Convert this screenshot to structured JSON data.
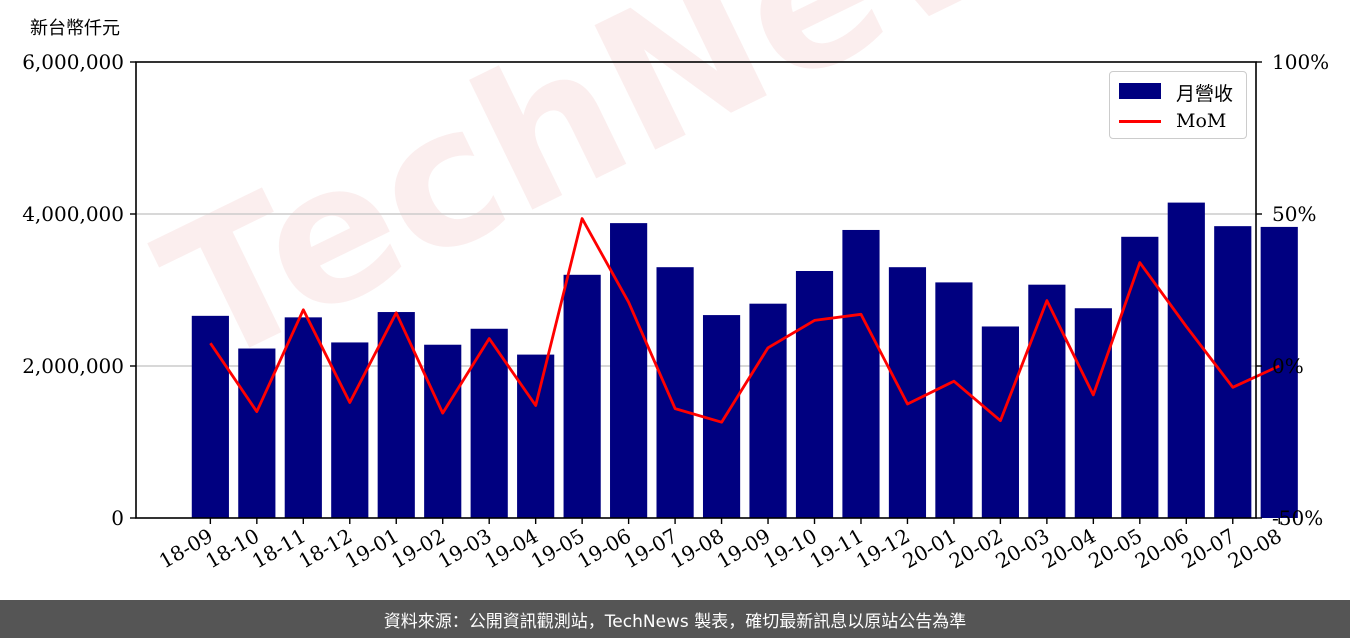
{
  "unit_label": "新台幣仟元",
  "watermark": "TechNews",
  "footer": "資料來源：公開資訊觀測站，TechNews 製表，確切最新訊息以原站公告為準",
  "colors": {
    "bar": "#000080",
    "line": "#ff0000",
    "grid": "#cccccc",
    "footer_bg": "#555555"
  },
  "chart_data": {
    "type": "bar",
    "categories": [
      "18-09",
      "18-10",
      "18-11",
      "18-12",
      "19-01",
      "19-02",
      "19-03",
      "19-04",
      "19-05",
      "19-06",
      "19-07",
      "19-08",
      "19-09",
      "19-10",
      "19-11",
      "19-12",
      "20-01",
      "20-02",
      "20-03",
      "20-04",
      "20-05",
      "20-06",
      "20-07",
      "20-08"
    ],
    "series": [
      {
        "name": "月營收",
        "type": "bar",
        "axis": "left",
        "values": [
          2660000,
          2230000,
          2640000,
          2310000,
          2710000,
          2280000,
          2490000,
          2150000,
          3200000,
          3880000,
          3300000,
          2670000,
          2820000,
          3250000,
          3790000,
          3300000,
          3100000,
          2520000,
          3070000,
          2760000,
          3700000,
          4150000,
          3840000,
          3830000
        ]
      },
      {
        "name": "MoM",
        "type": "line",
        "axis": "right",
        "values": [
          7.5,
          -15,
          18.5,
          -12,
          17.5,
          -15.5,
          9,
          -13,
          48.5,
          21,
          -14,
          -18.5,
          6,
          15,
          17,
          -12.5,
          -5,
          -18,
          21.5,
          -9.5,
          34,
          13,
          -7,
          0
        ]
      }
    ],
    "y_left": {
      "lim": [
        0,
        6000000
      ],
      "ticks": [
        0,
        2000000,
        4000000,
        6000000
      ],
      "tick_labels": [
        "0",
        "2,000,000",
        "4,000,000",
        "6,000,000"
      ]
    },
    "y_right": {
      "lim": [
        -50,
        100
      ],
      "ticks": [
        -50,
        0,
        50,
        100
      ],
      "tick_labels": [
        "-50%",
        "0%",
        "50%",
        "100%"
      ]
    },
    "grid": "horizontal",
    "legend_position": "top-right"
  }
}
